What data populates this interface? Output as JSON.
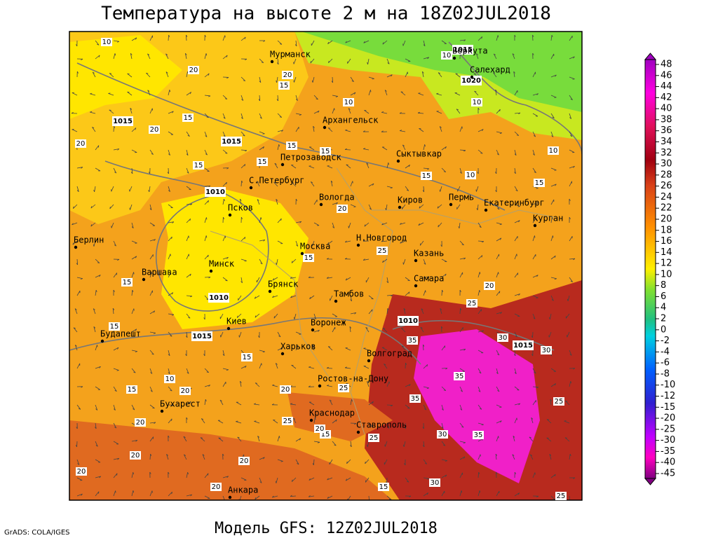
{
  "title": "Температура на высоте 2 м на 18Z02JUL2018",
  "footer": "Модель GFS: 12Z02JUL2018",
  "credit": "GrADS: COLA/IGES",
  "cities": [
    "Мурманск",
    "Воркута",
    "Салехард",
    "Архангельск",
    "Сыктывкар",
    "Петрозаводск",
    "С.Петербург",
    "Вологда",
    "Киров",
    "Пермь",
    "Екатеринбург",
    "Курган",
    "Псков",
    "Берлин",
    "Н.Новгород",
    "Москва",
    "Казань",
    "Минск",
    "Варшава",
    "Самара",
    "Брянск",
    "Тамбов",
    "Киев",
    "Воронеж",
    "Будапешт",
    "Харьков",
    "Волгоград",
    "Ростов-на-Дону",
    "Бухарест",
    "Краснодар",
    "Ставрополь",
    "Анкара"
  ],
  "isotherm_labels": [
    10,
    20,
    20,
    15,
    20,
    20,
    15,
    15,
    15,
    15,
    15,
    15,
    10,
    10,
    15,
    10,
    10,
    10,
    20,
    25,
    15,
    15,
    20,
    25,
    15,
    35,
    30,
    30,
    15,
    10,
    15,
    20,
    20,
    25,
    35,
    25,
    35,
    25,
    15,
    20,
    25,
    30,
    35,
    20,
    20,
    20,
    20,
    20,
    15,
    30,
    25
  ],
  "isobar_labels": [
    1015,
    1015,
    1010,
    1010,
    1015,
    1010,
    1015,
    1015,
    1020
  ],
  "colorbar_ticks": [
    48,
    46,
    44,
    42,
    40,
    38,
    36,
    34,
    32,
    30,
    28,
    26,
    24,
    22,
    20,
    18,
    16,
    14,
    12,
    10,
    8,
    6,
    4,
    2,
    0,
    -2,
    -4,
    -6,
    -8,
    -10,
    -12,
    -15,
    -20,
    -25,
    -30,
    -35,
    -40,
    -45
  ]
}
